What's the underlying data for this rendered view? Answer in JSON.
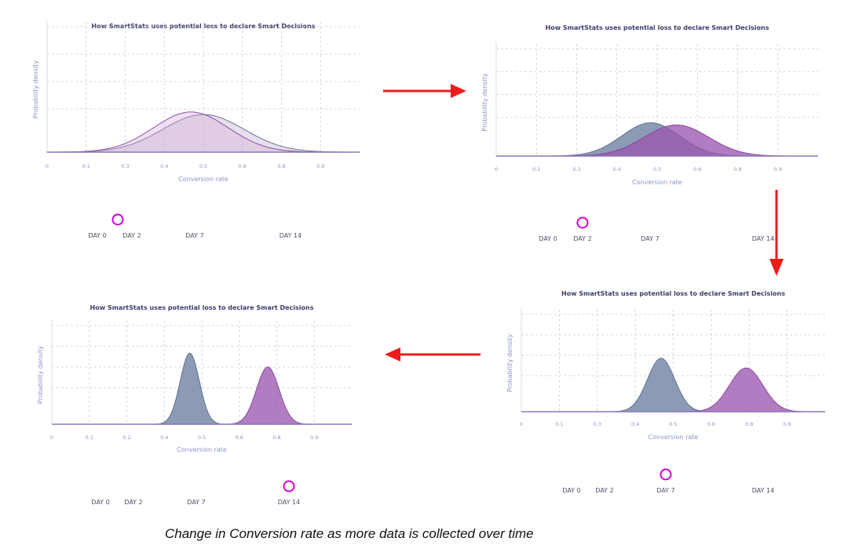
{
  "caption": "Change in Conversion rate as more data is collected over time",
  "colors": {
    "series_a": "#6b7fa0",
    "series_b": "#9b57b0",
    "arrow": "#ee1c1c",
    "slider_start": "#1e4f83",
    "slider_end": "#6b0aa6",
    "knob": "#d400d4"
  },
  "slider_labels": [
    "DAY 0",
    "DAY 2",
    "DAY 7",
    "DAY 14"
  ],
  "arrows": [
    "right",
    "down",
    "left"
  ],
  "chart_data": [
    {
      "type": "area",
      "title": "How SmartStats uses potential loss to declare Smart Decisions",
      "xlabel": "Conversion rate",
      "ylabel": "Probability density",
      "xlim": [
        0,
        1
      ],
      "x_ticks": [
        "0",
        "0.1",
        "0.3",
        "0.4",
        "0.5",
        "0.6",
        "0.8",
        "0.9"
      ],
      "grid": true,
      "series": [
        {
          "mean": 0.5,
          "sd": 0.13,
          "peak": 0.3
        },
        {
          "mean": 0.46,
          "sd": 0.12,
          "peak": 0.32
        }
      ],
      "slider_day": 2
    },
    {
      "type": "area",
      "title": "How SmartStats uses potential loss to declare Smart Decisions",
      "xlabel": "Conversion rate",
      "ylabel": "Probability density",
      "xlim": [
        0,
        1
      ],
      "x_ticks": [
        "0",
        "0.1",
        "0.3",
        "0.4",
        "0.5",
        "0.6",
        "0.8",
        "0.9"
      ],
      "grid": true,
      "series": [
        {
          "mean": 0.48,
          "sd": 0.09,
          "peak": 0.31
        },
        {
          "mean": 0.56,
          "sd": 0.1,
          "peak": 0.29
        }
      ],
      "slider_day": 2
    },
    {
      "type": "area",
      "title": "How SmartStats uses potential loss to declare Smart Decisions",
      "xlabel": "Conversion rate",
      "ylabel": "Probability density",
      "xlim": [
        0,
        1
      ],
      "x_ticks": [
        "0",
        "0.1",
        "0.3",
        "0.4",
        "0.5",
        "0.6",
        "0.8",
        "0.9"
      ],
      "grid": true,
      "series": [
        {
          "mean": 0.46,
          "sd": 0.045,
          "peak": 0.55
        },
        {
          "mean": 0.74,
          "sd": 0.055,
          "peak": 0.45
        }
      ],
      "slider_day": 7
    },
    {
      "type": "area",
      "title": "How SmartStats uses potential loss to declare Smart Decisions",
      "xlabel": "Conversion rate",
      "ylabel": "Probability density",
      "xlim": [
        0,
        1
      ],
      "x_ticks": [
        "0",
        "0.1",
        "0.2",
        "0.4",
        "0.5",
        "0.6",
        "0.8",
        "0.9"
      ],
      "grid": true,
      "series": [
        {
          "mean": 0.46,
          "sd": 0.032,
          "peak": 0.72
        },
        {
          "mean": 0.72,
          "sd": 0.038,
          "peak": 0.58
        }
      ],
      "slider_day": 14
    }
  ]
}
